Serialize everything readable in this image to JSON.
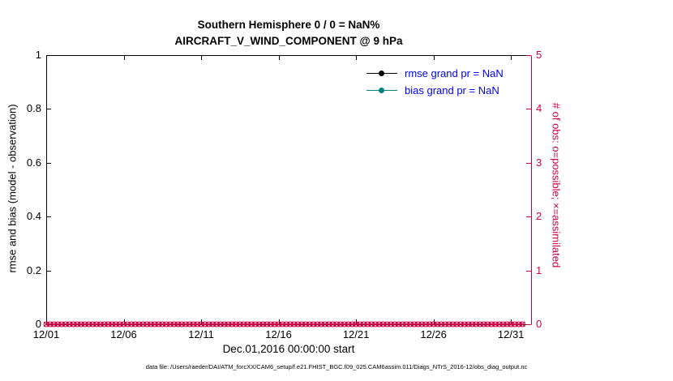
{
  "figure": {
    "title_line1": "Southern Hemisphere 0 / 0 = NaN%",
    "title_line2": "AIRCRAFT_V_WIND_COMPONENT @ 9 hPa",
    "caption": "data file: /Users/raeder/DAI/ATM_forcXX/CAM6_setup/f.e21.FHIST_BGC.f09_025.CAM6assim.011/Diags_NTrS_2016-12/obs_diag_output.nc"
  },
  "chart_data": {
    "type": "line",
    "title": "Southern Hemisphere 0 / 0 = NaN%",
    "subtitle": "AIRCRAFT_V_WIND_COMPONENT @ 9 hPa",
    "xlabel": "Dec.01,2016 00:00:00 start",
    "ylabel_left": "rmse and bias (model - observation)",
    "ylabel_right": "# of obs: o=possible; ×=assimilated",
    "x_tick_labels": [
      "12/01",
      "12/06",
      "12/11",
      "12/16",
      "12/21",
      "12/26",
      "12/31"
    ],
    "x_tick_days": [
      1,
      6,
      11,
      16,
      21,
      26,
      31
    ],
    "x_range_days": [
      1,
      32.3
    ],
    "ylim_left": [
      0,
      1
    ],
    "ytick_labels_left": [
      "0",
      "0.2",
      "0.4",
      "0.6",
      "0.8",
      "1"
    ],
    "yticks_left": [
      0,
      0.2,
      0.4,
      0.6,
      0.8,
      1
    ],
    "ylim_right": [
      0,
      5
    ],
    "ytick_labels_right": [
      "0",
      "1",
      "2",
      "3",
      "4",
      "5"
    ],
    "yticks_right": [
      0,
      1,
      2,
      3,
      4,
      5
    ],
    "grid": false,
    "legend_position": "top-right-inside",
    "legend": [
      {
        "label": "rmse grand pr = NaN",
        "series": "rmse"
      },
      {
        "label": "bias grand pr = NaN",
        "series": "bias"
      }
    ],
    "series": [
      {
        "name": "rmse",
        "axis": "left",
        "values_summary": "NaN (no line plotted)"
      },
      {
        "name": "bias",
        "axis": "left",
        "values_summary": "NaN (no line plotted)"
      },
      {
        "name": "possible_obs",
        "axis": "right",
        "marker": "o",
        "y_constant": 0,
        "x_start_day": 1,
        "x_end_day": 31.75,
        "interval_days": 0.25
      },
      {
        "name": "assimilated_obs",
        "axis": "right",
        "marker": "x",
        "y_constant": 0,
        "x_start_day": 1,
        "x_end_day": 31.75,
        "interval_days": 0.25
      }
    ],
    "colors": {
      "axis_left": "#000000",
      "axis_right": "#cc0044",
      "obs_markers": "#cc0044",
      "rmse": "#000000",
      "bias": "#008080",
      "legend_text": "#0000ee",
      "title": "#000000"
    }
  }
}
